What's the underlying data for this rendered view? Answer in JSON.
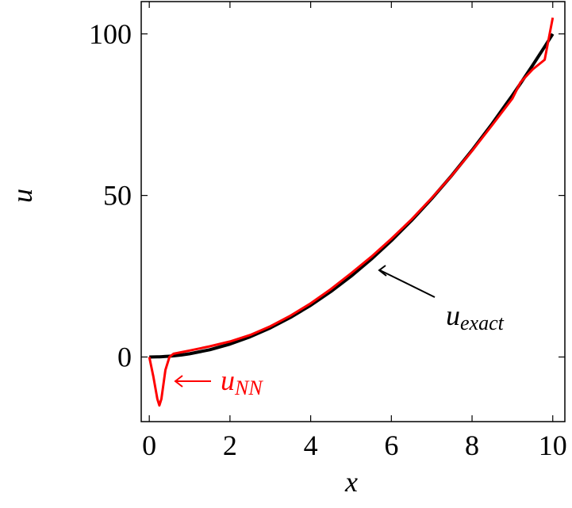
{
  "chart_data": {
    "type": "line",
    "x_label": "x",
    "y_label": "u",
    "x": [
      0,
      0.1,
      0.2,
      0.25,
      0.3,
      0.4,
      0.5,
      0.6,
      0.8,
      1,
      1.5,
      2,
      2.5,
      3,
      3.5,
      4,
      4.5,
      5,
      5.5,
      6,
      6.5,
      7,
      7.5,
      8,
      8.5,
      9,
      9.2,
      9.5,
      9.8,
      10
    ],
    "series": [
      {
        "color": "#000000",
        "values": [
          0,
          0.01,
          0.04,
          0.0625,
          0.09,
          0.16,
          0.25,
          0.36,
          0.64,
          1,
          2.25,
          4,
          6.25,
          9,
          12.25,
          16,
          20.25,
          25,
          30.25,
          36,
          42.25,
          49,
          56.25,
          64,
          72.25,
          81,
          84.64,
          90.25,
          96.04,
          100
        ]
      },
      {
        "color": "#ff0000",
        "values": [
          0,
          -6,
          -13,
          -15,
          -13,
          -4,
          0,
          1,
          1.5,
          2,
          3.3,
          4.8,
          6.8,
          9.5,
          12.8,
          16.6,
          21,
          25.9,
          31,
          36.6,
          42.6,
          49.2,
          56.2,
          63.8,
          71.8,
          80,
          85,
          89,
          92,
          105
        ]
      }
    ],
    "annotations": [
      {
        "text": "u",
        "subscript": "exact",
        "color": "#000000"
      },
      {
        "text": "u",
        "subscript": "NN",
        "color": "#ff0000"
      }
    ],
    "xlim": [
      -0.2,
      10.3
    ],
    "ylim": [
      -20,
      110
    ],
    "xticks": [
      0,
      2,
      4,
      6,
      8,
      10
    ],
    "yticks": [
      0,
      50,
      100
    ]
  }
}
